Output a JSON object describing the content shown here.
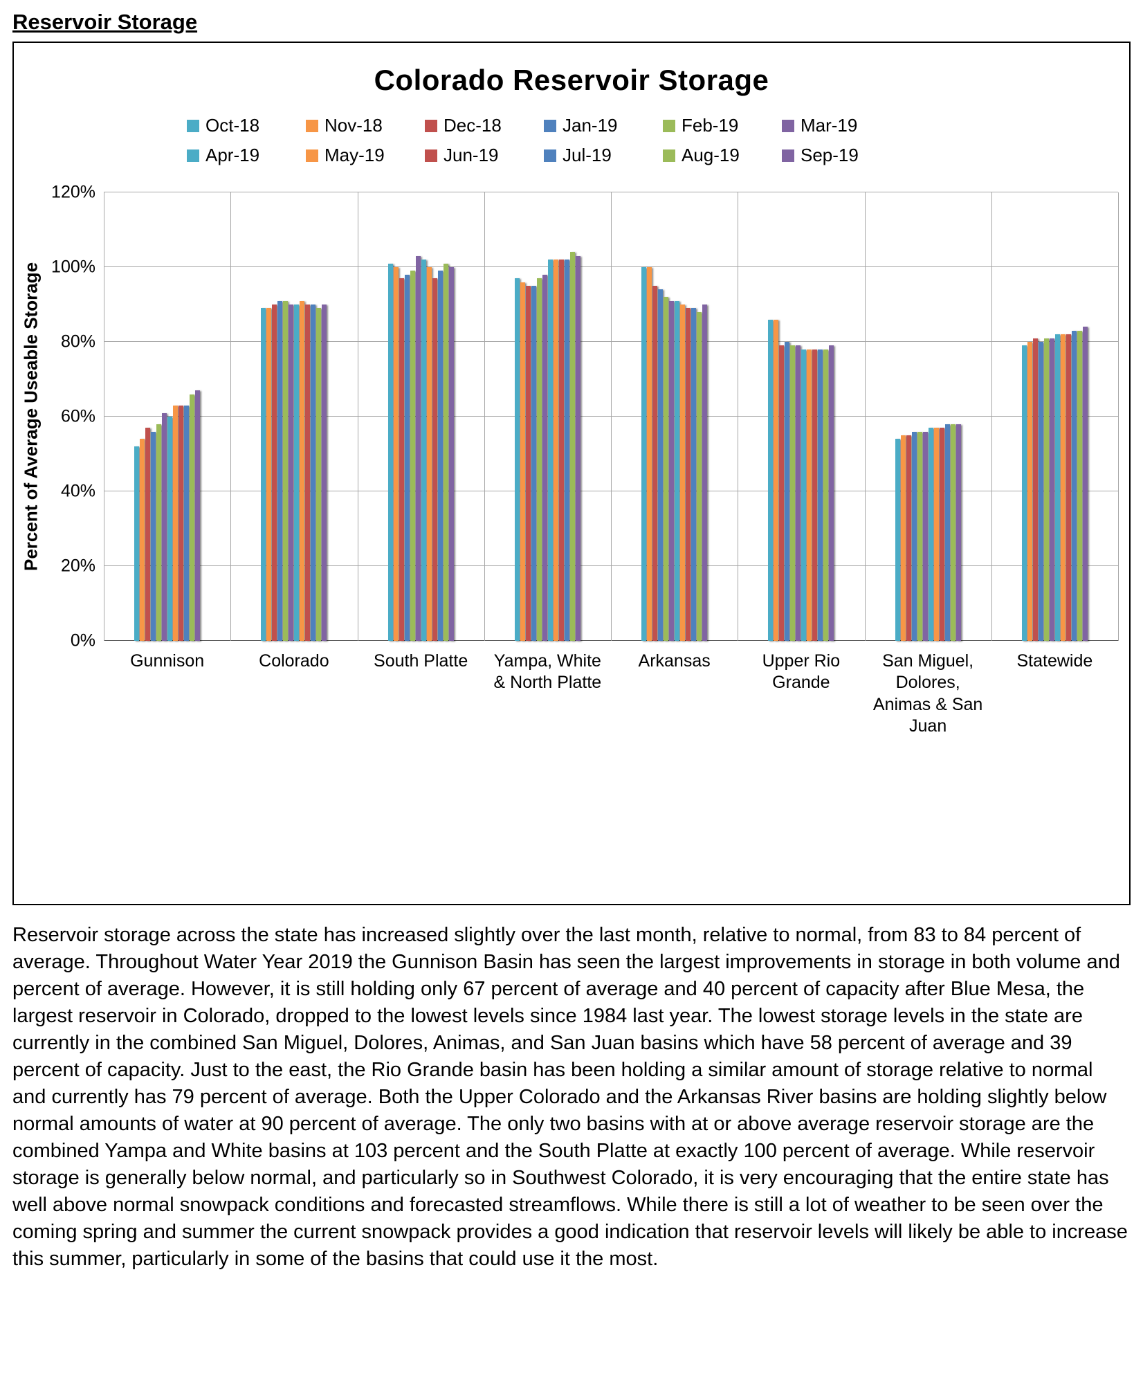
{
  "page": {
    "heading": "Reservoir Storage",
    "paragraph": "Reservoir storage across the state has increased slightly over the last month, relative to normal, from 83 to 84 percent of average. Throughout Water Year 2019 the Gunnison Basin has seen the largest improvements in storage in both volume and percent of average. However, it is still holding only 67 percent of average and 40 percent of capacity after Blue Mesa, the largest reservoir in Colorado, dropped to the lowest levels since 1984 last year. The lowest storage levels in the state are currently in the combined San Miguel, Dolores, Animas, and San Juan basins which have 58 percent of average and 39 percent of capacity. Just to the east, the Rio Grande basin has been holding a similar amount of storage relative to normal and currently has 79 percent of average. Both the Upper Colorado and the Arkansas River basins are holding slightly below normal amounts of water at 90 percent of average. The only two basins with at or above average reservoir storage are the combined Yampa and White basins at 103 percent and the South Platte at exactly 100 percent of average. While reservoir storage is generally below normal, and particularly so in Southwest Colorado, it is very encouraging that the entire state has well above normal snowpack conditions and forecasted streamflows. While there is still a lot of weather to be seen over the coming spring and summer the current snowpack provides a good indication that reservoir levels will likely be able to increase this summer, particularly in some of the basins that could use it the most."
  },
  "chart_data": {
    "type": "bar",
    "title": "Colorado Reservoir Storage",
    "ylabel": "Percent of Average Useable  Storage",
    "ylim": [
      0,
      120
    ],
    "ytick_step": 20,
    "ytick_labels": [
      "0%",
      "20%",
      "40%",
      "60%",
      "80%",
      "100%",
      "120%"
    ],
    "grid": true,
    "legend_position": "top",
    "colors": {
      "palette": [
        "#4BACC6",
        "#F79646",
        "#C0504D",
        "#4F81BD",
        "#9BBB59",
        "#8064A2"
      ],
      "gridline": "#A6A6A6",
      "axis": "#595959"
    },
    "categories": [
      "Gunnison",
      "Colorado",
      "South Platte",
      "Yampa, White & North Platte",
      "Arkansas",
      "Upper Rio Grande",
      "San Miguel, Dolores, Animas & San Juan",
      "Statewide"
    ],
    "series": [
      {
        "name": "Oct-18",
        "values": [
          52,
          89,
          101,
          97,
          100,
          86,
          54,
          79
        ]
      },
      {
        "name": "Nov-18",
        "values": [
          54,
          89,
          100,
          96,
          100,
          86,
          55,
          80
        ]
      },
      {
        "name": "Dec-18",
        "values": [
          57,
          90,
          97,
          95,
          95,
          79,
          55,
          81
        ]
      },
      {
        "name": "Jan-19",
        "values": [
          56,
          91,
          98,
          95,
          94,
          80,
          56,
          80
        ]
      },
      {
        "name": "Feb-19",
        "values": [
          58,
          91,
          99,
          97,
          92,
          79,
          56,
          81
        ]
      },
      {
        "name": "Mar-19",
        "values": [
          61,
          90,
          103,
          98,
          91,
          79,
          56,
          81
        ]
      },
      {
        "name": "Apr-19",
        "values": [
          60,
          90,
          102,
          102,
          91,
          78,
          57,
          82
        ]
      },
      {
        "name": "May-19",
        "values": [
          63,
          91,
          100,
          102,
          90,
          78,
          57,
          82
        ]
      },
      {
        "name": "Jun-19",
        "values": [
          63,
          90,
          97,
          102,
          89,
          78,
          57,
          82
        ]
      },
      {
        "name": "Jul-19",
        "values": [
          63,
          90,
          99,
          102,
          89,
          78,
          58,
          83
        ]
      },
      {
        "name": "Aug-19",
        "values": [
          66,
          89,
          101,
          104,
          88,
          78,
          58,
          83
        ]
      },
      {
        "name": "Sep-19",
        "values": [
          67,
          90,
          100,
          103,
          90,
          79,
          58,
          84
        ]
      }
    ]
  }
}
